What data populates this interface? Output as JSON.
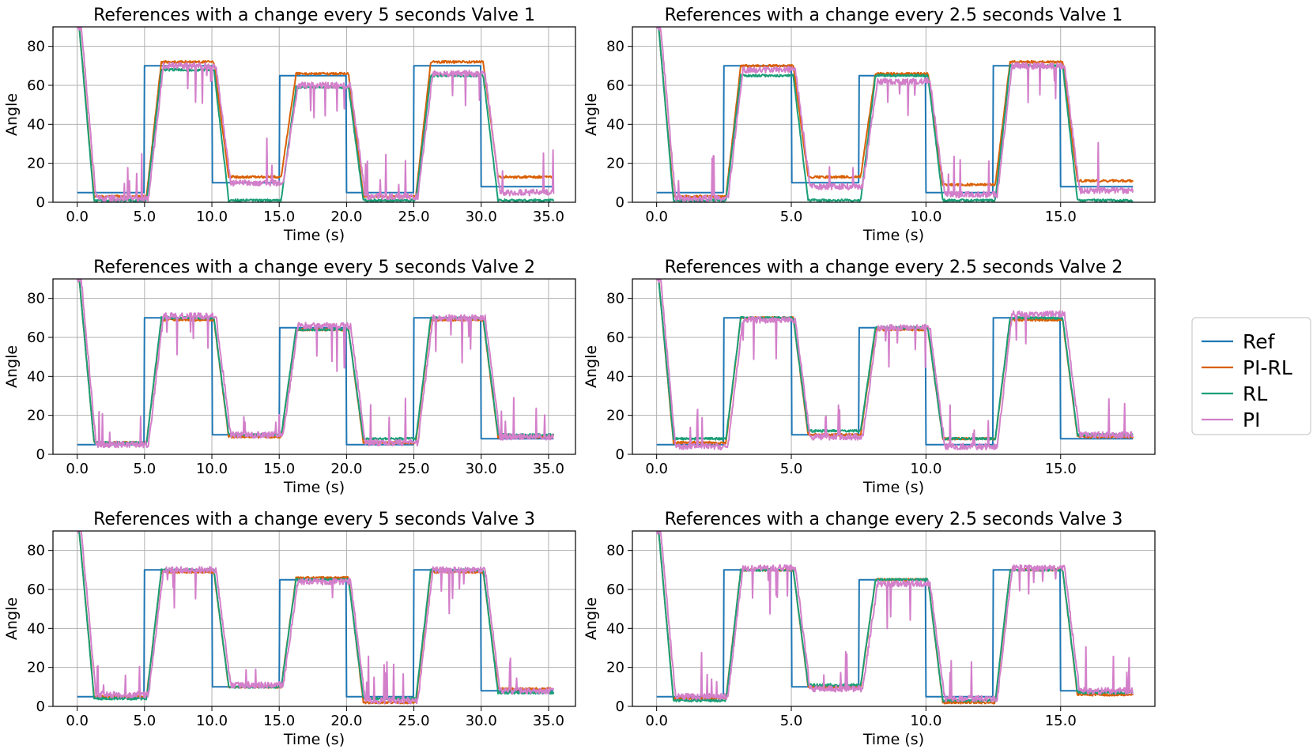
{
  "colors": {
    "Ref": "#1f77b4",
    "PI-RL": "#d95f02",
    "RL": "#1b9e77",
    "PI": "#d37fca",
    "grid": "#b0b0b0",
    "axes": "#000000"
  },
  "legend": {
    "placement": "right",
    "entries": [
      "Ref",
      "PI-RL",
      "RL",
      "PI"
    ]
  },
  "chart_data": [
    {
      "type": "line",
      "period": 5,
      "title": "References with a change every 5 seconds Valve 1",
      "xlabel": "Time (s)",
      "ylabel": "Angle",
      "xlim": [
        -1.8,
        37.0
      ],
      "ylim": [
        0,
        90
      ],
      "xticks": [
        0,
        5,
        10,
        15,
        20,
        25,
        30,
        35
      ],
      "xtick_labels": [
        "0.0",
        "5.0",
        "10.0",
        "15.0",
        "20.0",
        "25.0",
        "30.0",
        "35.0"
      ],
      "yticks": [
        0,
        20,
        40,
        60,
        80
      ],
      "ytick_labels": [
        "0",
        "20",
        "40",
        "60",
        "80"
      ],
      "t_end": 35.4,
      "series": [
        {
          "name": "Ref",
          "values": [
            5,
            70,
            10,
            65,
            5,
            70,
            8
          ]
        },
        {
          "name": "PI-RL",
          "values": [
            3,
            72,
            13,
            66,
            3,
            72,
            13
          ]
        },
        {
          "name": "RL",
          "values": [
            1,
            68,
            1,
            59,
            1,
            65,
            1
          ]
        },
        {
          "name": "PI",
          "values": [
            2,
            70,
            10,
            60,
            3,
            66,
            5
          ]
        }
      ]
    },
    {
      "type": "line",
      "period": 2.5,
      "title": "References with a change every 2.5 seconds Valve 1",
      "xlabel": "Time (s)",
      "ylabel": "Angle",
      "xlim": [
        -0.9,
        18.5
      ],
      "ylim": [
        0,
        90
      ],
      "xticks": [
        0,
        5,
        10,
        15
      ],
      "xtick_labels": [
        "0.0",
        "5.0",
        "10.0",
        "15.0"
      ],
      "yticks": [
        0,
        20,
        40,
        60,
        80
      ],
      "ytick_labels": [
        "0",
        "20",
        "40",
        "60",
        "80"
      ],
      "t_end": 17.7,
      "series": [
        {
          "name": "Ref",
          "values": [
            5,
            70,
            10,
            65,
            5,
            70,
            8
          ]
        },
        {
          "name": "PI-RL",
          "values": [
            3,
            70,
            13,
            66,
            9,
            72,
            11
          ]
        },
        {
          "name": "RL",
          "values": [
            1,
            65,
            1,
            65,
            1,
            70,
            1
          ]
        },
        {
          "name": "PI",
          "values": [
            2,
            68,
            8,
            62,
            4,
            70,
            6
          ]
        }
      ]
    },
    {
      "type": "line",
      "period": 5,
      "title": "References with a change every 5 seconds Valve 2",
      "xlabel": "Time (s)",
      "ylabel": "Angle",
      "xlim": [
        -1.8,
        37.0
      ],
      "ylim": [
        0,
        90
      ],
      "xticks": [
        0,
        5,
        10,
        15,
        20,
        25,
        30,
        35
      ],
      "xtick_labels": [
        "0.0",
        "5.0",
        "10.0",
        "15.0",
        "20.0",
        "25.0",
        "30.0",
        "35.0"
      ],
      "yticks": [
        0,
        20,
        40,
        60,
        80
      ],
      "ytick_labels": [
        "0",
        "20",
        "40",
        "60",
        "80"
      ],
      "t_end": 35.4,
      "series": [
        {
          "name": "Ref",
          "values": [
            5,
            70,
            10,
            65,
            5,
            70,
            8
          ]
        },
        {
          "name": "PI-RL",
          "values": [
            6,
            69,
            9,
            64,
            6,
            69,
            9
          ]
        },
        {
          "name": "RL",
          "values": [
            6,
            70,
            10,
            64,
            8,
            70,
            10
          ]
        },
        {
          "name": "PI",
          "values": [
            5,
            71,
            10,
            66,
            6,
            70,
            9
          ]
        }
      ]
    },
    {
      "type": "line",
      "period": 2.5,
      "title": "References with a change every 2.5 seconds Valve 2",
      "xlabel": "Time (s)",
      "ylabel": "Angle",
      "xlim": [
        -0.9,
        18.5
      ],
      "ylim": [
        0,
        90
      ],
      "xticks": [
        0,
        5,
        10,
        15
      ],
      "xtick_labels": [
        "0.0",
        "5.0",
        "10.0",
        "15.0"
      ],
      "yticks": [
        0,
        20,
        40,
        60,
        80
      ],
      "ytick_labels": [
        "0",
        "20",
        "40",
        "60",
        "80"
      ],
      "t_end": 17.7,
      "series": [
        {
          "name": "Ref",
          "values": [
            5,
            70,
            10,
            65,
            5,
            70,
            8
          ]
        },
        {
          "name": "PI-RL",
          "values": [
            6,
            70,
            10,
            64,
            8,
            69,
            9
          ]
        },
        {
          "name": "RL",
          "values": [
            8,
            70,
            12,
            65,
            8,
            70,
            10
          ]
        },
        {
          "name": "PI",
          "values": [
            4,
            69,
            9,
            65,
            4,
            72,
            10
          ]
        }
      ]
    },
    {
      "type": "line",
      "period": 5,
      "title": "References with a change every 5 seconds Valve 3",
      "xlabel": "Time (s)",
      "ylabel": "Angle",
      "xlim": [
        -1.8,
        37.0
      ],
      "ylim": [
        0,
        90
      ],
      "xticks": [
        0,
        5,
        10,
        15,
        20,
        25,
        30,
        35
      ],
      "xtick_labels": [
        "0.0",
        "5.0",
        "10.0",
        "15.0",
        "20.0",
        "25.0",
        "30.0",
        "35.0"
      ],
      "yticks": [
        0,
        20,
        40,
        60,
        80
      ],
      "ytick_labels": [
        "0",
        "20",
        "40",
        "60",
        "80"
      ],
      "t_end": 35.4,
      "series": [
        {
          "name": "Ref",
          "values": [
            5,
            70,
            10,
            65,
            5,
            70,
            8
          ]
        },
        {
          "name": "PI-RL",
          "values": [
            5,
            69,
            10,
            66,
            2,
            69,
            9
          ]
        },
        {
          "name": "RL",
          "values": [
            4,
            70,
            10,
            65,
            4,
            70,
            7
          ]
        },
        {
          "name": "PI",
          "values": [
            6,
            70,
            11,
            64,
            3,
            70,
            8
          ]
        }
      ]
    },
    {
      "type": "line",
      "period": 2.5,
      "title": "References with a change every 2.5 seconds Valve 3",
      "xlabel": "Time (s)",
      "ylabel": "Angle",
      "xlim": [
        -0.9,
        18.5
      ],
      "ylim": [
        0,
        90
      ],
      "xticks": [
        0,
        5,
        10,
        15
      ],
      "xtick_labels": [
        "0.0",
        "5.0",
        "10.0",
        "15.0"
      ],
      "yticks": [
        0,
        20,
        40,
        60,
        80
      ],
      "ytick_labels": [
        "0",
        "20",
        "40",
        "60",
        "80"
      ],
      "t_end": 17.7,
      "series": [
        {
          "name": "Ref",
          "values": [
            5,
            70,
            10,
            65,
            5,
            70,
            8
          ]
        },
        {
          "name": "PI-RL",
          "values": [
            4,
            70,
            10,
            65,
            2,
            70,
            6
          ]
        },
        {
          "name": "RL",
          "values": [
            3,
            70,
            11,
            65,
            3,
            70,
            7
          ]
        },
        {
          "name": "PI",
          "values": [
            5,
            71,
            9,
            63,
            4,
            71,
            8
          ]
        }
      ]
    }
  ]
}
